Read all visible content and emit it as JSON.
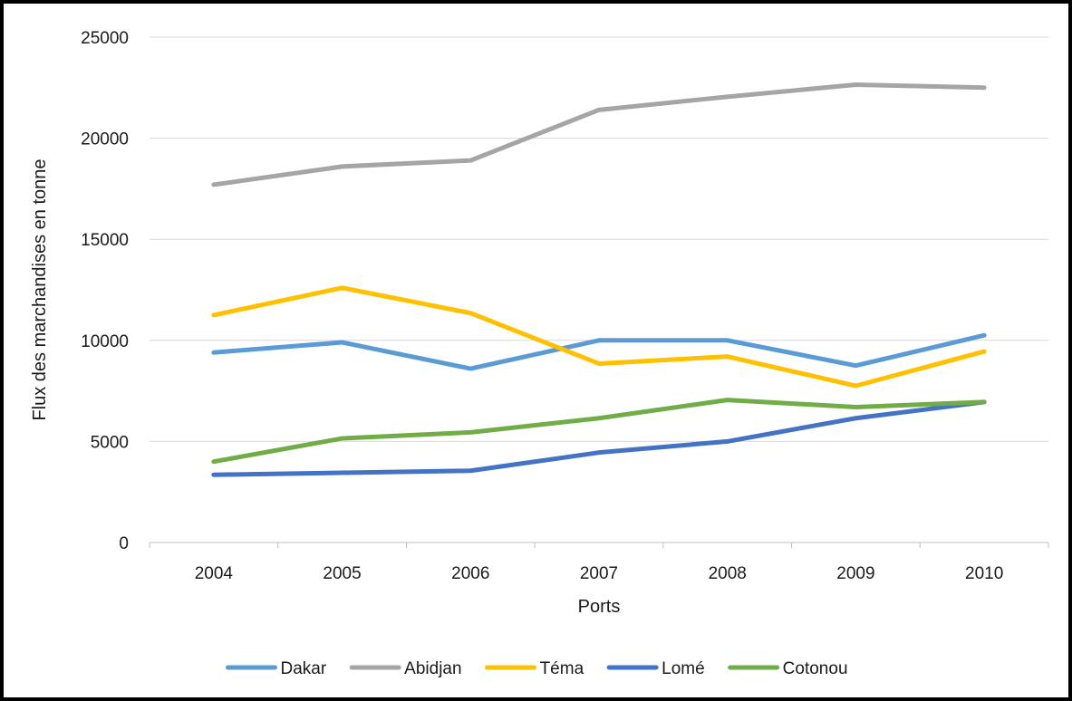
{
  "chart_data": {
    "type": "line",
    "title": "",
    "xlabel": "Ports",
    "ylabel": "Flux des marchandises en tonne",
    "categories": [
      "2004",
      "2005",
      "2006",
      "2007",
      "2008",
      "2009",
      "2010"
    ],
    "ylim": [
      0,
      25000
    ],
    "yticks": [
      0,
      5000,
      10000,
      15000,
      20000,
      25000
    ],
    "grid": true,
    "legend_position": "bottom",
    "series": [
      {
        "name": "Dakar",
        "color": "#5b9bd5",
        "values": [
          9400,
          9900,
          8600,
          10000,
          10000,
          8750,
          10250
        ]
      },
      {
        "name": "Abidjan",
        "color": "#a5a5a5",
        "values": [
          17700,
          18600,
          18900,
          21400,
          22050,
          22650,
          22500
        ]
      },
      {
        "name": "Téma",
        "color": "#ffc000",
        "values": [
          11250,
          12600,
          11350,
          8850,
          9200,
          7750,
          9450
        ]
      },
      {
        "name": "Lomé",
        "color": "#4472c4",
        "values": [
          3350,
          3450,
          3550,
          4450,
          5000,
          6150,
          6950
        ]
      },
      {
        "name": "Cotonou",
        "color": "#70ad47",
        "values": [
          4000,
          5150,
          5450,
          6150,
          7050,
          6700,
          6950
        ]
      }
    ]
  }
}
